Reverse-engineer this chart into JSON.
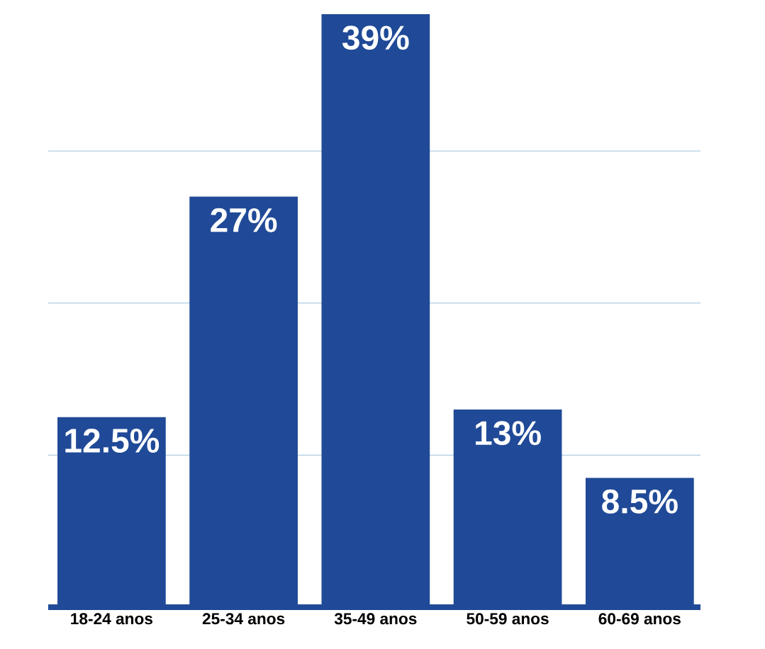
{
  "chart_data": {
    "type": "bar",
    "categories": [
      "18-24 anos",
      "25-34 anos",
      "35-49 anos",
      "50-59 anos",
      "60-69 anos"
    ],
    "values": [
      12.5,
      27,
      39,
      13,
      8.5
    ],
    "value_labels": [
      "12.5%",
      "27%",
      "39%",
      "13%",
      "8.5%"
    ],
    "color": "#204a97",
    "ylim": [
      0,
      39
    ],
    "yticks": [
      {
        "value": 10,
        "label": null
      },
      {
        "value": 20,
        "label": null
      },
      {
        "value": 30,
        "label": null
      }
    ],
    "grid": "y",
    "tick_labels": "x"
  }
}
